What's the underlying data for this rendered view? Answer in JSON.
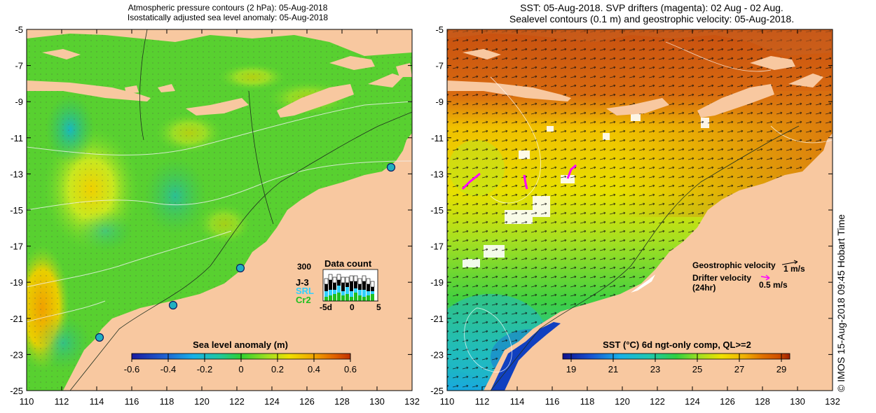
{
  "left_panel": {
    "title_line1": "Atmospheric pressure contours (2 hPa): 05-Aug-2018",
    "title_line2": "Isostatically adjusted sea level anomaly: 05-Aug-2018",
    "colorbar_label": "Sea level anomaly (m)",
    "colorbar_ticks": [
      "-0.6",
      "-0.4",
      "-0.2",
      "0",
      "0.2",
      "0.4",
      "0.6"
    ],
    "colorbar_colors": [
      "#1a1aa0",
      "#2060d0",
      "#18b0e8",
      "#20c8a0",
      "#30d030",
      "#a0e020",
      "#f0e000",
      "#f0a000",
      "#e06000",
      "#c03000"
    ],
    "data_count": {
      "title": "Data count",
      "scale": "300",
      "legend": [
        "J-3",
        "SRL",
        "Cr2"
      ],
      "legend_colors": [
        "#000000",
        "#30d0ff",
        "#20c020"
      ],
      "x_ticks": [
        "-5d",
        "0",
        "5"
      ]
    },
    "markers": [
      {
        "lon": 131.0,
        "lat": -12.7
      },
      {
        "lon": 122.2,
        "lat": -18.2
      },
      {
        "lon": 118.4,
        "lat": -20.3
      },
      {
        "lon": 114.1,
        "lat": -22.1
      }
    ]
  },
  "right_panel": {
    "title_line1": "SST: 05-Aug-2018. SVP drifters (magenta): 02 Aug - 02 Aug.",
    "title_line2": "Sealevel contours (0.1 m) and geostrophic velocity: 05-Aug-2018.",
    "colorbar_label": "SST (°C) 6d ngt-only comp, QL>=2",
    "colorbar_ticks": [
      "19",
      "21",
      "23",
      "25",
      "27",
      "29"
    ],
    "colorbar_colors": [
      "#10108a",
      "#1850d0",
      "#18b0e8",
      "#20c8b0",
      "#30d040",
      "#a0e020",
      "#f0e000",
      "#f0b000",
      "#e07000",
      "#d05000",
      "#a02000"
    ],
    "geostrophic_label": "Geostrophic velocity",
    "geostrophic_value": "1 m/s",
    "drifter_label": "Drifter velocity",
    "drifter_period": "(24hr)",
    "drifter_value": "0.5 m/s",
    "drifter_arrow_color": "#ff00ff"
  },
  "axes": {
    "x_ticks": [
      "110",
      "112",
      "114",
      "116",
      "118",
      "120",
      "122",
      "124",
      "126",
      "128",
      "130",
      "132"
    ],
    "y_ticks": [
      "-5",
      "-7",
      "-9",
      "-11",
      "-13",
      "-15",
      "-17",
      "-19",
      "-21",
      "-23",
      "-25"
    ]
  },
  "credit": "© IMOS 15-Aug-2018 09:45 Hobart Time"
}
